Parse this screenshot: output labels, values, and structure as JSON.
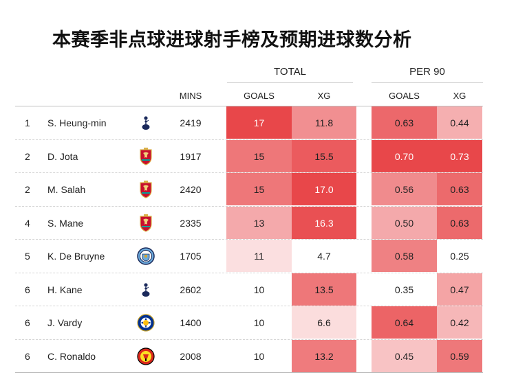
{
  "title": "本赛季非点球进球射手榜及预期进球数分析",
  "groups": {
    "total": "TOTAL",
    "per90": "PER 90"
  },
  "headers": {
    "mins": "MINS",
    "goals_total": "GOALS",
    "xg_total": "XG",
    "goals_per90": "GOALS",
    "xg_per90": "XG"
  },
  "rows": [
    {
      "rank": "1",
      "player": "S. Heung-min",
      "club_icon": "tottenham-crest-icon",
      "mins": "2419",
      "goals": "17",
      "xg": "11.8",
      "goals90": "0.63",
      "xg90": "0.44"
    },
    {
      "rank": "2",
      "player": "D. Jota",
      "club_icon": "liverpool-crest-icon",
      "mins": "1917",
      "goals": "15",
      "xg": "15.5",
      "goals90": "0.70",
      "xg90": "0.73"
    },
    {
      "rank": "2",
      "player": "M. Salah",
      "club_icon": "liverpool-crest-icon",
      "mins": "2420",
      "goals": "15",
      "xg": "17.0",
      "goals90": "0.56",
      "xg90": "0.63"
    },
    {
      "rank": "4",
      "player": "S. Mane",
      "club_icon": "liverpool-crest-icon",
      "mins": "2335",
      "goals": "13",
      "xg": "16.3",
      "goals90": "0.50",
      "xg90": "0.63"
    },
    {
      "rank": "5",
      "player": "K. De Bruyne",
      "club_icon": "man-city-crest-icon",
      "mins": "1705",
      "goals": "11",
      "xg": "4.7",
      "goals90": "0.58",
      "xg90": "0.25"
    },
    {
      "rank": "6",
      "player": "H. Kane",
      "club_icon": "tottenham-crest-icon",
      "mins": "2602",
      "goals": "10",
      "xg": "13.5",
      "goals90": "0.35",
      "xg90": "0.47"
    },
    {
      "rank": "6",
      "player": "J. Vardy",
      "club_icon": "leicester-crest-icon",
      "mins": "1400",
      "goals": "10",
      "xg": "6.6",
      "goals90": "0.64",
      "xg90": "0.42"
    },
    {
      "rank": "6",
      "player": "C. Ronaldo",
      "club_icon": "man-utd-crest-icon",
      "mins": "2008",
      "goals": "10",
      "xg": "13.2",
      "goals90": "0.45",
      "xg90": "0.59"
    }
  ],
  "colors": {
    "heat_low": "#ffffff",
    "heat_high": "#e8474a",
    "rule": "#bdbdbd"
  }
}
